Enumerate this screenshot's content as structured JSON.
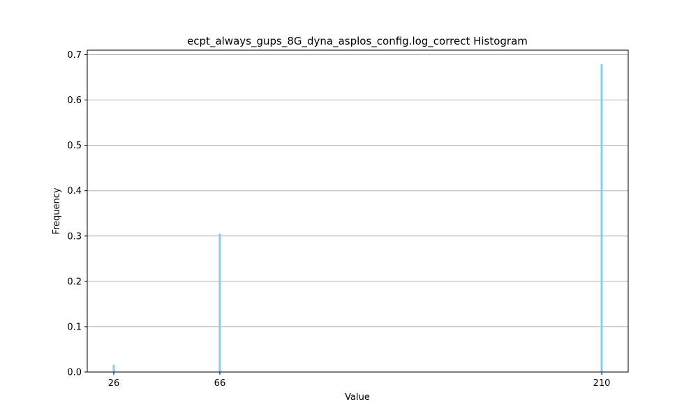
{
  "chart_data": {
    "type": "bar",
    "title": "ecpt_always_gups_8G_dyna_asplos_config.log_correct Histogram",
    "xlabel": "Value",
    "ylabel": "Frequency",
    "xlim": [
      16,
      220
    ],
    "ylim": [
      0,
      0.71
    ],
    "x": [
      26,
      66,
      210
    ],
    "values": [
      0.016,
      0.305,
      0.679
    ],
    "xticks": [
      26,
      66,
      210
    ],
    "yticks": [
      0.0,
      0.1,
      0.2,
      0.3,
      0.4,
      0.5,
      0.6,
      0.7
    ],
    "grid": "y",
    "bar_color": "#87CEEB"
  }
}
